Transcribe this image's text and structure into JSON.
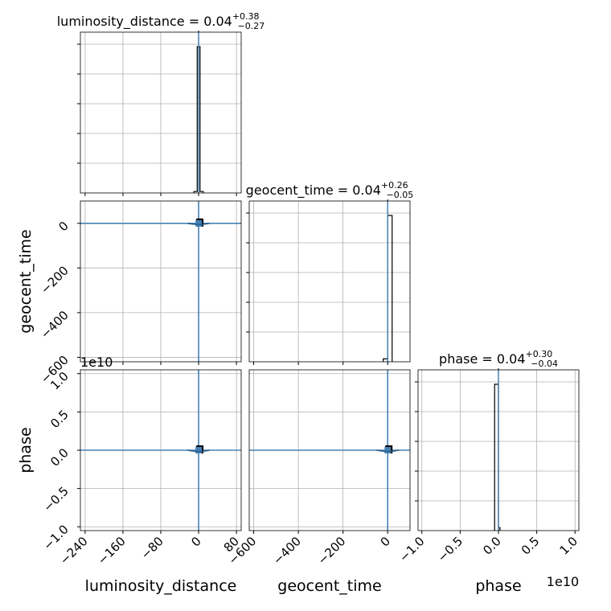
{
  "chart_data": {
    "type": "corner",
    "parameters": [
      "luminosity_distance",
      "geocent_time",
      "phase"
    ],
    "titles": {
      "luminosity_distance": {
        "name": "luminosity_distance",
        "median": "0.04",
        "plus": "+0.38",
        "minus": "−0.27"
      },
      "geocent_time": {
        "name": "geocent_time",
        "median": "0.04",
        "plus": "+0.26",
        "minus": "−0.05"
      },
      "phase": {
        "name": "phase",
        "median": "0.04",
        "plus": "+0.30",
        "minus": "−0.04"
      }
    },
    "axes": {
      "luminosity_distance": {
        "label": "luminosity_distance",
        "range": [
          -250,
          90
        ],
        "ticks": [
          -240,
          -160,
          -80,
          0,
          80
        ],
        "tick_labels": [
          "−240",
          "−160",
          "−80",
          "0",
          "80"
        ]
      },
      "geocent_time": {
        "label": "geocent_time",
        "range": [
          -620,
          100
        ],
        "ticks": [
          -600,
          -400,
          -200,
          0
        ],
        "tick_labels": [
          "−600",
          "−400",
          "−200",
          "0"
        ]
      },
      "phase": {
        "label": "phase",
        "range": [
          -1.05,
          1.05
        ],
        "ticks": [
          -1.0,
          -0.5,
          0.0,
          0.5,
          1.0
        ],
        "tick_labels": [
          "−1.0",
          "−0.5",
          "0.0",
          "0.5",
          "1.0"
        ],
        "offset_text": "1e10"
      }
    },
    "histograms": {
      "luminosity_distance": {
        "bin_edges": [
          -10,
          -3,
          3,
          10
        ],
        "counts": [
          0.01,
          1.0,
          0.01
        ]
      },
      "geocent_time": {
        "bin_edges": [
          -20,
          0,
          20
        ],
        "counts": [
          0.02,
          1.0
        ]
      },
      "phase": {
        "bin_edges": [
          -0.05,
          0.0,
          0.02
        ],
        "counts": [
          1.0,
          0.02
        ]
      }
    },
    "truths": {
      "luminosity_distance": 0,
      "geocent_time": 0,
      "phase": 0
    },
    "median_lines": {
      "luminosity_distance": 0,
      "geocent_time": 0,
      "phase": 0
    },
    "grid": true,
    "colors": {
      "truth": "#4682b4",
      "hist": "#000000",
      "grid": "#b0b0b0",
      "median": "#000000"
    }
  }
}
